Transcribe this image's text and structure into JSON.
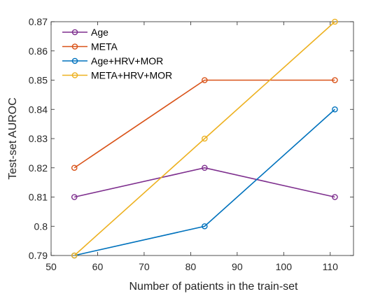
{
  "chart_data": {
    "type": "line",
    "xlabel": "Number of patients in the train-set",
    "ylabel": "Test-set AUROC",
    "xlim": [
      50,
      115
    ],
    "ylim": [
      0.79,
      0.87
    ],
    "xticks": [
      50,
      60,
      70,
      80,
      90,
      100,
      110
    ],
    "xtick_labels": [
      "50",
      "60",
      "70",
      "80",
      "90",
      "100",
      "110"
    ],
    "yticks": [
      0.79,
      0.8,
      0.81,
      0.82,
      0.83,
      0.84,
      0.85,
      0.86,
      0.87
    ],
    "ytick_labels": [
      "0.79",
      "0.8",
      "0.81",
      "0.82",
      "0.83",
      "0.84",
      "0.85",
      "0.86",
      "0.87"
    ],
    "grid": false,
    "legend_position": "top-left",
    "x": [
      55,
      83,
      111
    ],
    "series": [
      {
        "name": "Age",
        "color": "#7E2F8E",
        "values": [
          0.81,
          0.82,
          0.81
        ]
      },
      {
        "name": "META",
        "color": "#D95319",
        "values": [
          0.82,
          0.85,
          0.85
        ]
      },
      {
        "name": "Age+HRV+MOR",
        "color": "#0072BD",
        "values": [
          0.79,
          0.8,
          0.84
        ]
      },
      {
        "name": "META+HRV+MOR",
        "color": "#EDB120",
        "values": [
          0.79,
          0.83,
          0.87
        ]
      }
    ]
  }
}
